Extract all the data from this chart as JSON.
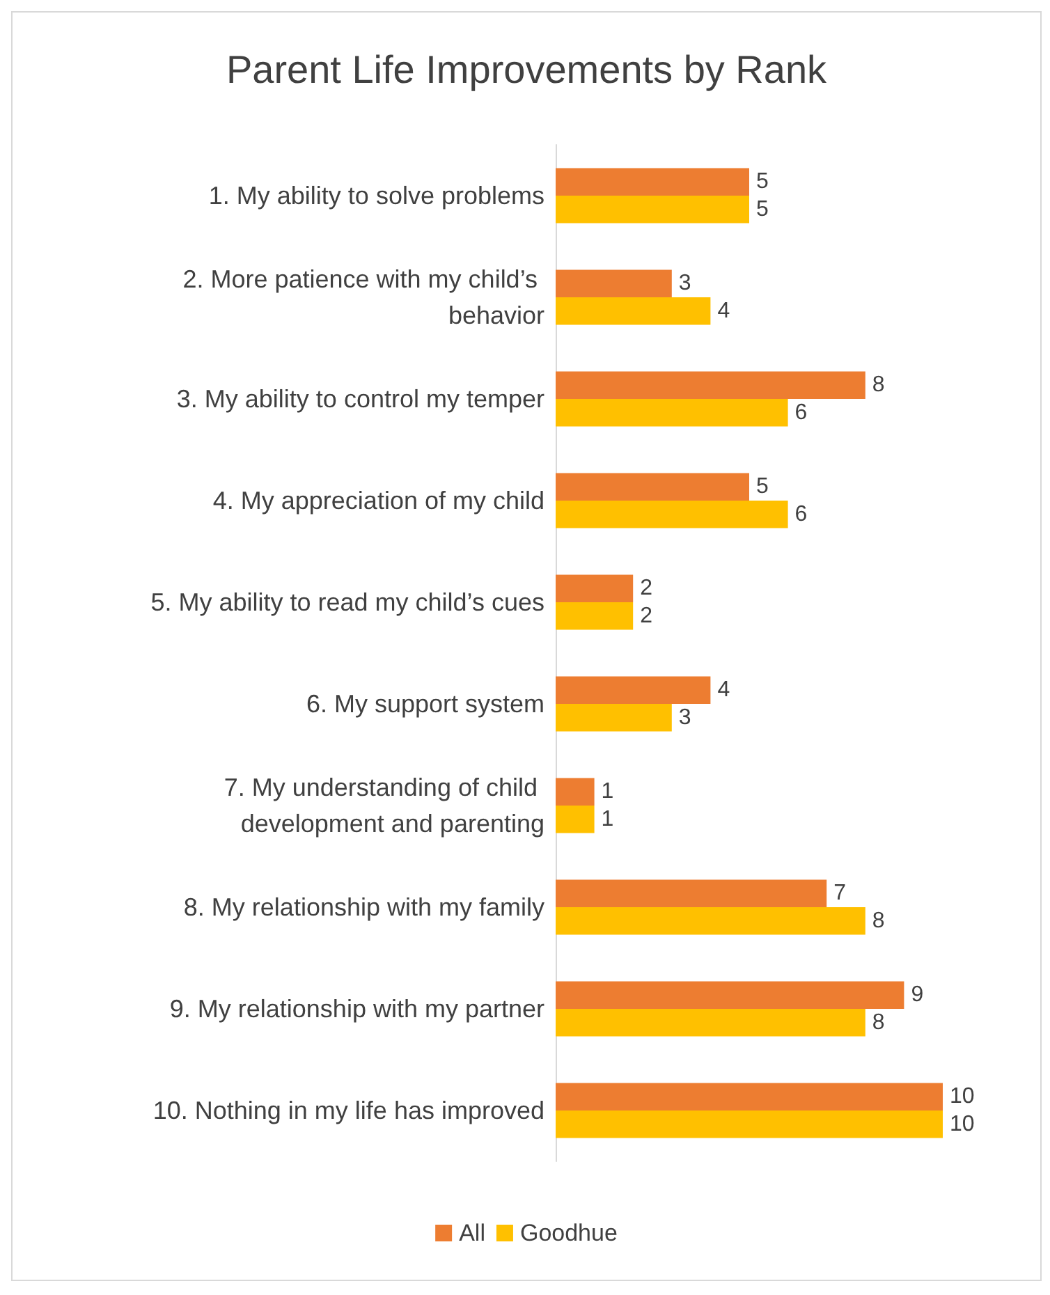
{
  "chart_data": {
    "type": "bar",
    "orientation": "horizontal",
    "title": "Parent Life Improvements by Rank",
    "categories": [
      "1. My ability to solve problems",
      "2. More patience with my child’s behavior",
      "3. My ability to control my temper",
      "4. My appreciation of my child",
      "5. My ability to read my child’s cues",
      "6. My support system",
      "7. My understanding of child development and parenting",
      "8. My relationship with my family",
      "9. My relationship with my partner",
      "10. Nothing in my life has improved"
    ],
    "series": [
      {
        "name": "All",
        "color": "#ed7d31",
        "values": [
          5,
          3,
          8,
          5,
          2,
          4,
          1,
          7,
          9,
          10
        ]
      },
      {
        "name": "Goodhue",
        "color": "#ffc000",
        "values": [
          5,
          4,
          6,
          6,
          2,
          3,
          1,
          8,
          8,
          10
        ]
      }
    ],
    "data_labels": true,
    "grid": false,
    "legend": "bottom",
    "tick_labels": "y"
  }
}
